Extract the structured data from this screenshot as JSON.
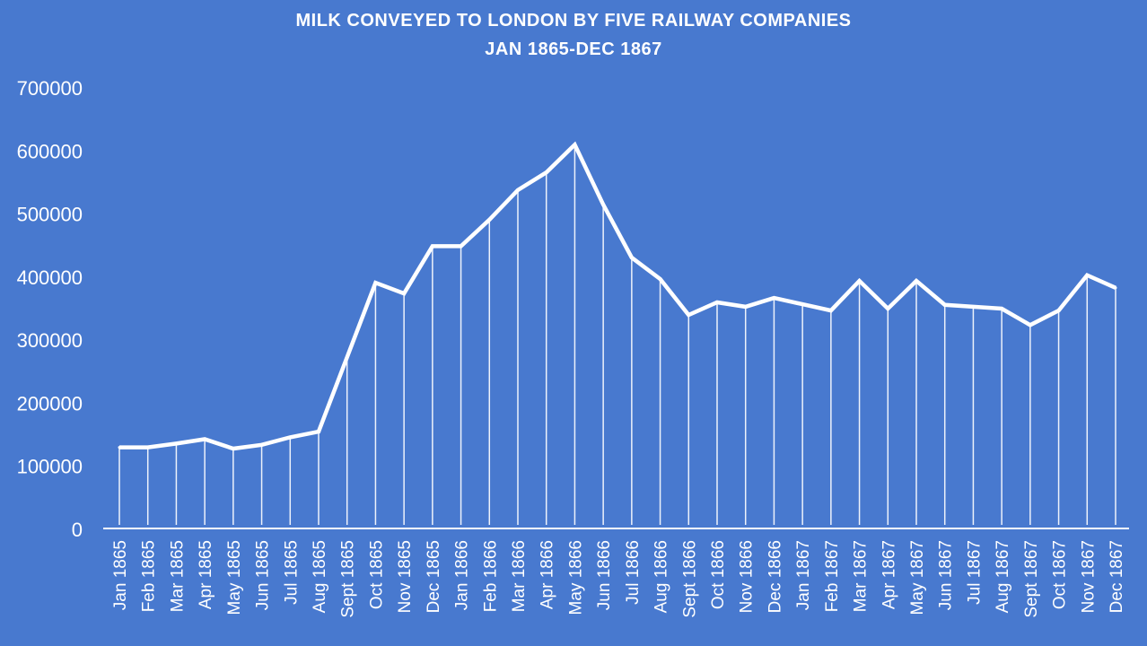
{
  "chart_data": {
    "type": "line",
    "title": "MILK CONVEYED TO LONDON BY FIVE RAILWAY COMPANIES",
    "subtitle": "JAN 1865-DEC 1867",
    "xlabel": "",
    "ylabel": "",
    "ylim": [
      0,
      700000
    ],
    "yticks": [
      "0",
      "100000",
      "200000",
      "300000",
      "400000",
      "500000",
      "600000",
      "700000"
    ],
    "grid": false,
    "drop_lines": true,
    "line_color": "#ffffff",
    "background_color": "#4879cf",
    "categories": [
      "Jan 1865",
      "Feb 1865",
      "Mar 1865",
      "Apr 1865",
      "May 1865",
      "Jun 1865",
      "Jul 1865",
      "Aug 1865",
      "Sept 1865",
      "Oct 1865",
      "Nov 1865",
      "Dec 1865",
      "Jan 1866",
      "Feb 1866",
      "Mar 1866",
      "Apr 1866",
      "May 1866",
      "Jun 1866",
      "Jul 1866",
      "Aug 1866",
      "Sept 1866",
      "Oct 1866",
      "Nov 1866",
      "Dec 1866",
      "Jan 1867",
      "Feb 1867",
      "Mar 1867",
      "Apr 1867",
      "May 1867",
      "Jun 1867",
      "Jul 1867",
      "Aug 1867",
      "Sept 1867",
      "Oct 1867",
      "Nov 1867",
      "Dec 1867"
    ],
    "values": [
      130000,
      130000,
      136000,
      143000,
      128000,
      134000,
      146000,
      155000,
      273000,
      391000,
      374000,
      449000,
      449000,
      491000,
      538000,
      566000,
      610000,
      515000,
      431000,
      397000,
      340000,
      360000,
      353000,
      367000,
      357000,
      347000,
      394000,
      350000,
      394000,
      356000,
      353000,
      350000,
      324000,
      347000,
      403000,
      383000
    ]
  }
}
